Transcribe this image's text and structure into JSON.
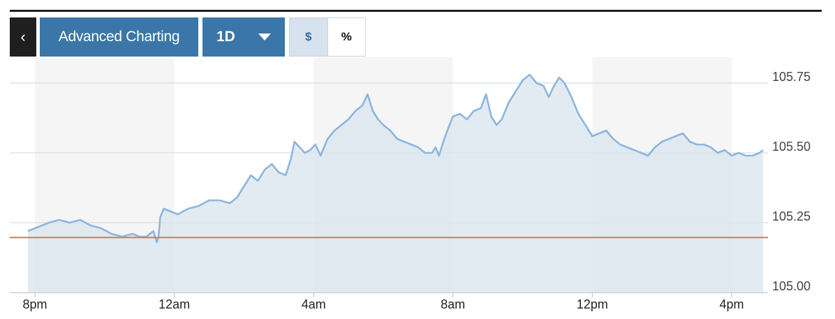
{
  "toolbar": {
    "back_glyph": "‹",
    "advanced_label": "Advanced Charting",
    "range_label": "1D",
    "unit_dollar": "$",
    "unit_percent": "%"
  },
  "colors": {
    "line": "#8db6df",
    "area": "#dbe6ef",
    "reference": "#e07b39",
    "band": "#f5f5f5",
    "grid": "#d7dde2",
    "button": "#3a77a8"
  },
  "chart_data": {
    "type": "area",
    "title": "",
    "xlabel": "",
    "ylabel": "",
    "ylim": [
      105.0,
      105.8
    ],
    "yticks": [
      {
        "value": 105.75,
        "label": "105.75"
      },
      {
        "value": 105.5,
        "label": "105.50"
      },
      {
        "value": 105.25,
        "label": "105.25"
      },
      {
        "value": 105.0,
        "label": "105.00"
      }
    ],
    "xticks": [
      {
        "hour": 0,
        "label": "8pm"
      },
      {
        "hour": 4,
        "label": "12am"
      },
      {
        "hour": 8,
        "label": "4am"
      },
      {
        "hour": 12,
        "label": "8am"
      },
      {
        "hour": 16,
        "label": "12pm"
      },
      {
        "hour": 20,
        "label": "4pm"
      }
    ],
    "xlim": [
      -0.2,
      20.9
    ],
    "reference_value": 105.197,
    "shaded_bands": [
      [
        0,
        4
      ],
      [
        8,
        12
      ],
      [
        16,
        20
      ]
    ],
    "grid": "horizontal",
    "series": [
      {
        "x": [
          -0.2,
          0.0,
          0.2,
          0.4,
          0.7,
          1.0,
          1.3,
          1.6,
          1.9,
          2.2,
          2.5,
          2.8,
          3.0,
          3.2,
          3.4,
          3.5,
          3.55,
          3.6,
          3.7,
          3.9,
          4.1,
          4.4,
          4.7,
          5.0,
          5.3,
          5.6,
          5.8,
          6.0,
          6.2,
          6.4,
          6.6,
          6.8,
          7.0,
          7.2,
          7.35,
          7.45,
          7.6,
          7.75,
          7.9,
          8.05,
          8.2,
          8.4,
          8.6,
          8.8,
          9.0,
          9.2,
          9.4,
          9.55,
          9.7,
          9.85,
          10.0,
          10.2,
          10.4,
          10.6,
          10.8,
          11.0,
          11.2,
          11.4,
          11.5,
          11.6,
          11.75,
          11.9,
          12.0,
          12.2,
          12.4,
          12.6,
          12.8,
          12.95,
          13.1,
          13.25,
          13.4,
          13.6,
          13.8,
          14.0,
          14.2,
          14.4,
          14.6,
          14.75,
          14.9,
          15.05,
          15.2,
          15.4,
          15.6,
          15.8,
          16.0,
          16.2,
          16.4,
          16.6,
          16.8,
          17.0,
          17.2,
          17.4,
          17.6,
          17.8,
          18.0,
          18.2,
          18.4,
          18.6,
          18.8,
          19.0,
          19.2,
          19.4,
          19.6,
          19.8,
          20.0,
          20.2,
          20.4,
          20.6,
          20.8,
          20.9
        ],
        "y": [
          105.22,
          105.23,
          105.24,
          105.25,
          105.26,
          105.25,
          105.26,
          105.24,
          105.23,
          105.21,
          105.2,
          105.21,
          105.2,
          105.2,
          105.22,
          105.18,
          105.2,
          105.27,
          105.3,
          105.29,
          105.28,
          105.3,
          105.31,
          105.33,
          105.33,
          105.32,
          105.34,
          105.38,
          105.42,
          105.4,
          105.44,
          105.46,
          105.43,
          105.42,
          105.48,
          105.54,
          105.52,
          105.5,
          105.51,
          105.53,
          105.49,
          105.55,
          105.58,
          105.6,
          105.62,
          105.65,
          105.67,
          105.71,
          105.65,
          105.62,
          105.6,
          105.58,
          105.55,
          105.54,
          105.53,
          105.52,
          105.5,
          105.5,
          105.52,
          105.49,
          105.55,
          105.6,
          105.63,
          105.64,
          105.62,
          105.65,
          105.66,
          105.71,
          105.63,
          105.6,
          105.62,
          105.68,
          105.72,
          105.76,
          105.78,
          105.75,
          105.74,
          105.7,
          105.74,
          105.77,
          105.75,
          105.7,
          105.64,
          105.6,
          105.56,
          105.57,
          105.58,
          105.55,
          105.53,
          105.52,
          105.51,
          105.5,
          105.49,
          105.52,
          105.54,
          105.55,
          105.56,
          105.57,
          105.54,
          105.53,
          105.53,
          105.52,
          105.5,
          105.51,
          105.49,
          105.5,
          105.49,
          105.49,
          105.5,
          105.51
        ]
      }
    ]
  }
}
